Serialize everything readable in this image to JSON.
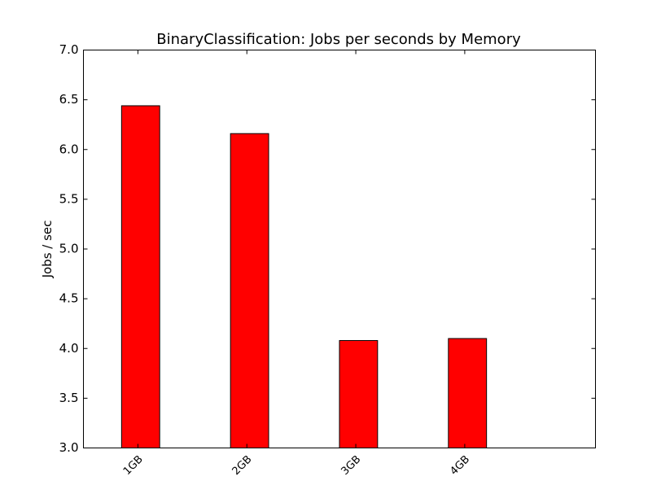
{
  "chart_data": {
    "type": "bar",
    "title": "BinaryClassification: Jobs per seconds by Memory",
    "xlabel": "",
    "ylabel": "Jobs / sec",
    "categories": [
      "1GB",
      "2GB",
      "3GB",
      "4GB"
    ],
    "values": [
      6.44,
      6.16,
      4.08,
      4.1
    ],
    "ylim": [
      3.0,
      7.0
    ],
    "yticks": [
      "3.0",
      "3.5",
      "4.0",
      "4.5",
      "5.0",
      "5.5",
      "6.0",
      "6.5",
      "7.0"
    ],
    "xlim": [
      0,
      4.7
    ],
    "bar_width": 0.35,
    "bar_color": "#ff0000",
    "edge_color": "#000000",
    "grid": false,
    "legend": "none"
  }
}
